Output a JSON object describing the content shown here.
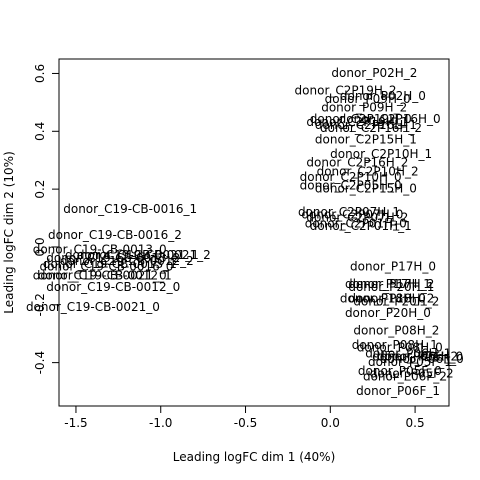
{
  "chart_data": {
    "type": "scatter",
    "marker": "text-labels",
    "xlabel": "Leading logFC dim 1 (40%)",
    "ylabel": "Leading logFC dim 2 (10%)",
    "xlim": [
      -1.6,
      0.7
    ],
    "ylim": [
      -0.55,
      0.65
    ],
    "x_ticks": [
      -1.5,
      -1.0,
      -0.5,
      0.0,
      0.5
    ],
    "x_tick_labels": [
      "-1.5",
      "-1.0",
      "-0.5",
      "0.0",
      "0.5"
    ],
    "y_ticks": [
      -0.4,
      -0.2,
      0.0,
      0.2,
      0.4,
      0.6
    ],
    "y_tick_labels": [
      "-0.4",
      "-0.2",
      "0.0",
      "0.2",
      "0.4",
      "0.6"
    ],
    "grid": false,
    "points": [
      {
        "label": "donor_P02H_2",
        "x": 0.26,
        "y": 0.6
      },
      {
        "label": "donor_C2P19H_2",
        "x": 0.09,
        "y": 0.54
      },
      {
        "label": "donor_P02H_0",
        "x": 0.31,
        "y": 0.52
      },
      {
        "label": "donor_P09H_0",
        "x": 0.22,
        "y": 0.51
      },
      {
        "label": "donor_P09H_2",
        "x": 0.2,
        "y": 0.48
      },
      {
        "label": "donor_C2P16H_0",
        "x": 0.35,
        "y": 0.44
      },
      {
        "label": "donor_C2P19H_0",
        "x": 0.18,
        "y": 0.44
      },
      {
        "label": "donor_C2P19H_1",
        "x": 0.16,
        "y": 0.43
      },
      {
        "label": "donor_C2P16H_1",
        "x": 0.21,
        "y": 0.42
      },
      {
        "label": "donor_C2P16H_2",
        "x": 0.24,
        "y": 0.41
      },
      {
        "label": "donor_C2P15H_1",
        "x": 0.21,
        "y": 0.37
      },
      {
        "label": "donor_C2P10H_1",
        "x": 0.3,
        "y": 0.32
      },
      {
        "label": "donor_C2P16H_2",
        "x": 0.16,
        "y": 0.29
      },
      {
        "label": "donor_C2P10H_2",
        "x": 0.22,
        "y": 0.26
      },
      {
        "label": "donor_C2P10H_0",
        "x": 0.12,
        "y": 0.24
      },
      {
        "label": "donor_C2P05H_0",
        "x": 0.12,
        "y": 0.21
      },
      {
        "label": "donor_C2P15H_0",
        "x": 0.21,
        "y": 0.2
      },
      {
        "label": "donor_C2P07H_1",
        "x": 0.11,
        "y": 0.12
      },
      {
        "label": "donor_C2P07H_0",
        "x": 0.13,
        "y": 0.11
      },
      {
        "label": "donor_C2P07H_2",
        "x": 0.16,
        "y": 0.1
      },
      {
        "label": "donor_C2P01H_0",
        "x": 0.15,
        "y": 0.08
      },
      {
        "label": "donor_C2P01H_1",
        "x": 0.18,
        "y": 0.07
      },
      {
        "label": "donor_C19-CB-0016_1",
        "x": -1.18,
        "y": 0.13
      },
      {
        "label": "donor_C19-CB-0016_2",
        "x": -1.27,
        "y": 0.04
      },
      {
        "label": "donor_C19-CB-0013_0",
        "x": -1.36,
        "y": -0.01
      },
      {
        "label": "donor_C19-CB-0021_2",
        "x": -1.1,
        "y": -0.03
      },
      {
        "label": "donor_C19-CB-0021_1",
        "x": -1.17,
        "y": -0.03
      },
      {
        "label": "donor_C19-CB-0013_2",
        "x": -1.28,
        "y": -0.04
      },
      {
        "label": "donor_C19-CB-0012_2",
        "x": -1.2,
        "y": -0.05
      },
      {
        "label": "donor_C19-CB-0013_1",
        "x": -1.3,
        "y": -0.06
      },
      {
        "label": "donor_C19-CB-0016_0",
        "x": -1.32,
        "y": -0.07
      },
      {
        "label": "donor_C19-CB-0012_1",
        "x": -1.33,
        "y": -0.1
      },
      {
        "label": "donor_C19-CB-0021_0",
        "x": -1.36,
        "y": -0.1
      },
      {
        "label": "donor_C19-CB-0012_0",
        "x": -1.28,
        "y": -0.14
      },
      {
        "label": "donor_C19-CB-0021_0",
        "x": -1.4,
        "y": -0.21
      },
      {
        "label": "donor_P17H_0",
        "x": 0.37,
        "y": -0.07
      },
      {
        "label": "donor_P17H_1",
        "x": 0.34,
        "y": -0.13
      },
      {
        "label": "donor_P17H_2",
        "x": 0.36,
        "y": -0.13
      },
      {
        "label": "donor_P20H_1",
        "x": 0.36,
        "y": -0.14
      },
      {
        "label": "donor_P18H_0",
        "x": 0.31,
        "y": -0.18
      },
      {
        "label": "donor_P18H_2",
        "x": 0.36,
        "y": -0.18
      },
      {
        "label": "donor_P20H_2",
        "x": 0.39,
        "y": -0.19
      },
      {
        "label": "donor_P20H_0",
        "x": 0.34,
        "y": -0.23
      },
      {
        "label": "donor_P08H_2",
        "x": 0.39,
        "y": -0.29
      },
      {
        "label": "donor_P08H_1",
        "x": 0.38,
        "y": -0.34
      },
      {
        "label": "donor_P08H_0",
        "x": 0.41,
        "y": -0.35
      },
      {
        "label": "donor_P06H_1",
        "x": 0.46,
        "y": -0.37
      },
      {
        "label": "donor_P06H_2",
        "x": 0.5,
        "y": -0.38
      },
      {
        "label": "donor_P06H_0",
        "x": 0.53,
        "y": -0.38
      },
      {
        "label": "donor_P06F_0",
        "x": 0.54,
        "y": -0.39
      },
      {
        "label": "donor_P05F_1",
        "x": 0.47,
        "y": -0.4
      },
      {
        "label": "donor_P05F_0",
        "x": 0.41,
        "y": -0.43
      },
      {
        "label": "donor_P05F_2",
        "x": 0.48,
        "y": -0.44
      },
      {
        "label": "donor_P06F_2",
        "x": 0.44,
        "y": -0.45
      },
      {
        "label": "donor_P06F_1",
        "x": 0.4,
        "y": -0.5
      }
    ]
  }
}
